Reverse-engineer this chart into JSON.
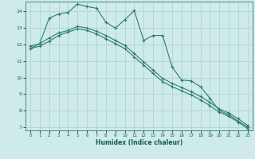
{
  "xlabel": "Humidex (Indice chaleur)",
  "bg_color": "#ceeaea",
  "line_color": "#2e7d6e",
  "grid_color": "#afd4d4",
  "xlim": [
    -0.5,
    23.5
  ],
  "ylim": [
    6.8,
    14.6
  ],
  "yticks": [
    7,
    8,
    9,
    10,
    11,
    12,
    13,
    14
  ],
  "xticks": [
    0,
    1,
    2,
    3,
    4,
    5,
    6,
    7,
    8,
    9,
    10,
    11,
    12,
    13,
    14,
    15,
    16,
    17,
    18,
    19,
    20,
    21,
    22,
    23
  ],
  "line1_x": [
    0,
    1,
    2,
    3,
    4,
    5,
    6,
    7,
    8,
    9,
    10,
    11,
    12,
    13,
    14,
    15,
    16,
    17,
    18,
    19,
    20,
    21,
    22,
    23
  ],
  "line1_y": [
    11.75,
    12.05,
    13.6,
    13.85,
    13.95,
    14.45,
    14.3,
    14.2,
    13.35,
    13.0,
    13.5,
    14.05,
    12.25,
    12.55,
    12.55,
    10.65,
    9.85,
    9.8,
    9.45,
    8.75,
    8.0,
    7.75,
    7.35,
    7.0
  ],
  "line2_x": [
    0,
    1,
    2,
    3,
    4,
    5,
    6,
    7,
    8,
    9,
    10,
    11,
    12,
    13,
    14,
    15,
    16,
    17,
    18,
    19,
    20,
    21,
    22,
    23
  ],
  "line2_y": [
    11.9,
    12.05,
    12.4,
    12.7,
    12.85,
    13.1,
    13.0,
    12.8,
    12.55,
    12.25,
    11.95,
    11.45,
    10.95,
    10.45,
    9.95,
    9.65,
    9.4,
    9.15,
    8.85,
    8.5,
    8.1,
    7.85,
    7.5,
    7.1
  ],
  "line3_x": [
    0,
    1,
    2,
    3,
    4,
    5,
    6,
    7,
    8,
    9,
    10,
    11,
    12,
    13,
    14,
    15,
    16,
    17,
    18,
    19,
    20,
    21,
    22,
    23
  ],
  "line3_y": [
    11.75,
    11.9,
    12.2,
    12.55,
    12.75,
    12.95,
    12.85,
    12.65,
    12.35,
    12.05,
    11.75,
    11.25,
    10.75,
    10.25,
    9.75,
    9.45,
    9.2,
    8.95,
    8.65,
    8.3,
    7.9,
    7.65,
    7.3,
    6.9
  ]
}
